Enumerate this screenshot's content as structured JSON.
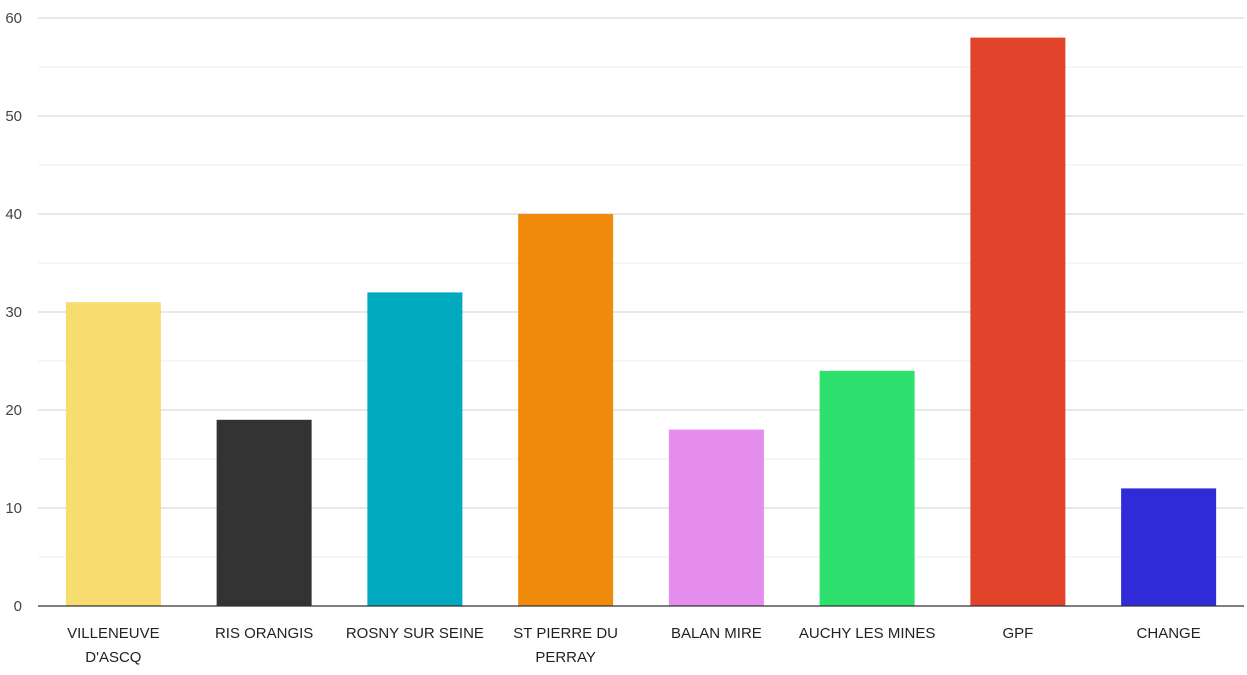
{
  "chart_data": {
    "type": "bar",
    "categories": [
      "VILLENEUVE D'ASCQ",
      "RIS ORANGIS",
      "ROSNY SUR SEINE",
      "ST PIERRE DU PERRAY",
      "BALAN MIRE",
      "AUCHY LES MINES",
      "GPF",
      "CHANGE"
    ],
    "category_lines": [
      [
        "VILLENEUVE",
        "D'ASCQ"
      ],
      [
        "RIS ORANGIS"
      ],
      [
        "ROSNY SUR SEINE"
      ],
      [
        "ST PIERRE DU",
        "PERRAY"
      ],
      [
        "BALAN MIRE"
      ],
      [
        "AUCHY LES MINES"
      ],
      [
        "GPF"
      ],
      [
        "CHANGE"
      ]
    ],
    "values": [
      31,
      19,
      32,
      40,
      18,
      24,
      58,
      12
    ],
    "colors": [
      "#f7dc6f",
      "#333333",
      "#00a9bd",
      "#f08a0b",
      "#e48ded",
      "#2ee06e",
      "#e1442a",
      "#2f2bd9"
    ],
    "title": "",
    "xlabel": "",
    "ylabel": "",
    "ylim": [
      0,
      60
    ],
    "yticks": [
      0,
      10,
      20,
      30,
      40,
      50,
      60
    ],
    "grid": true
  }
}
